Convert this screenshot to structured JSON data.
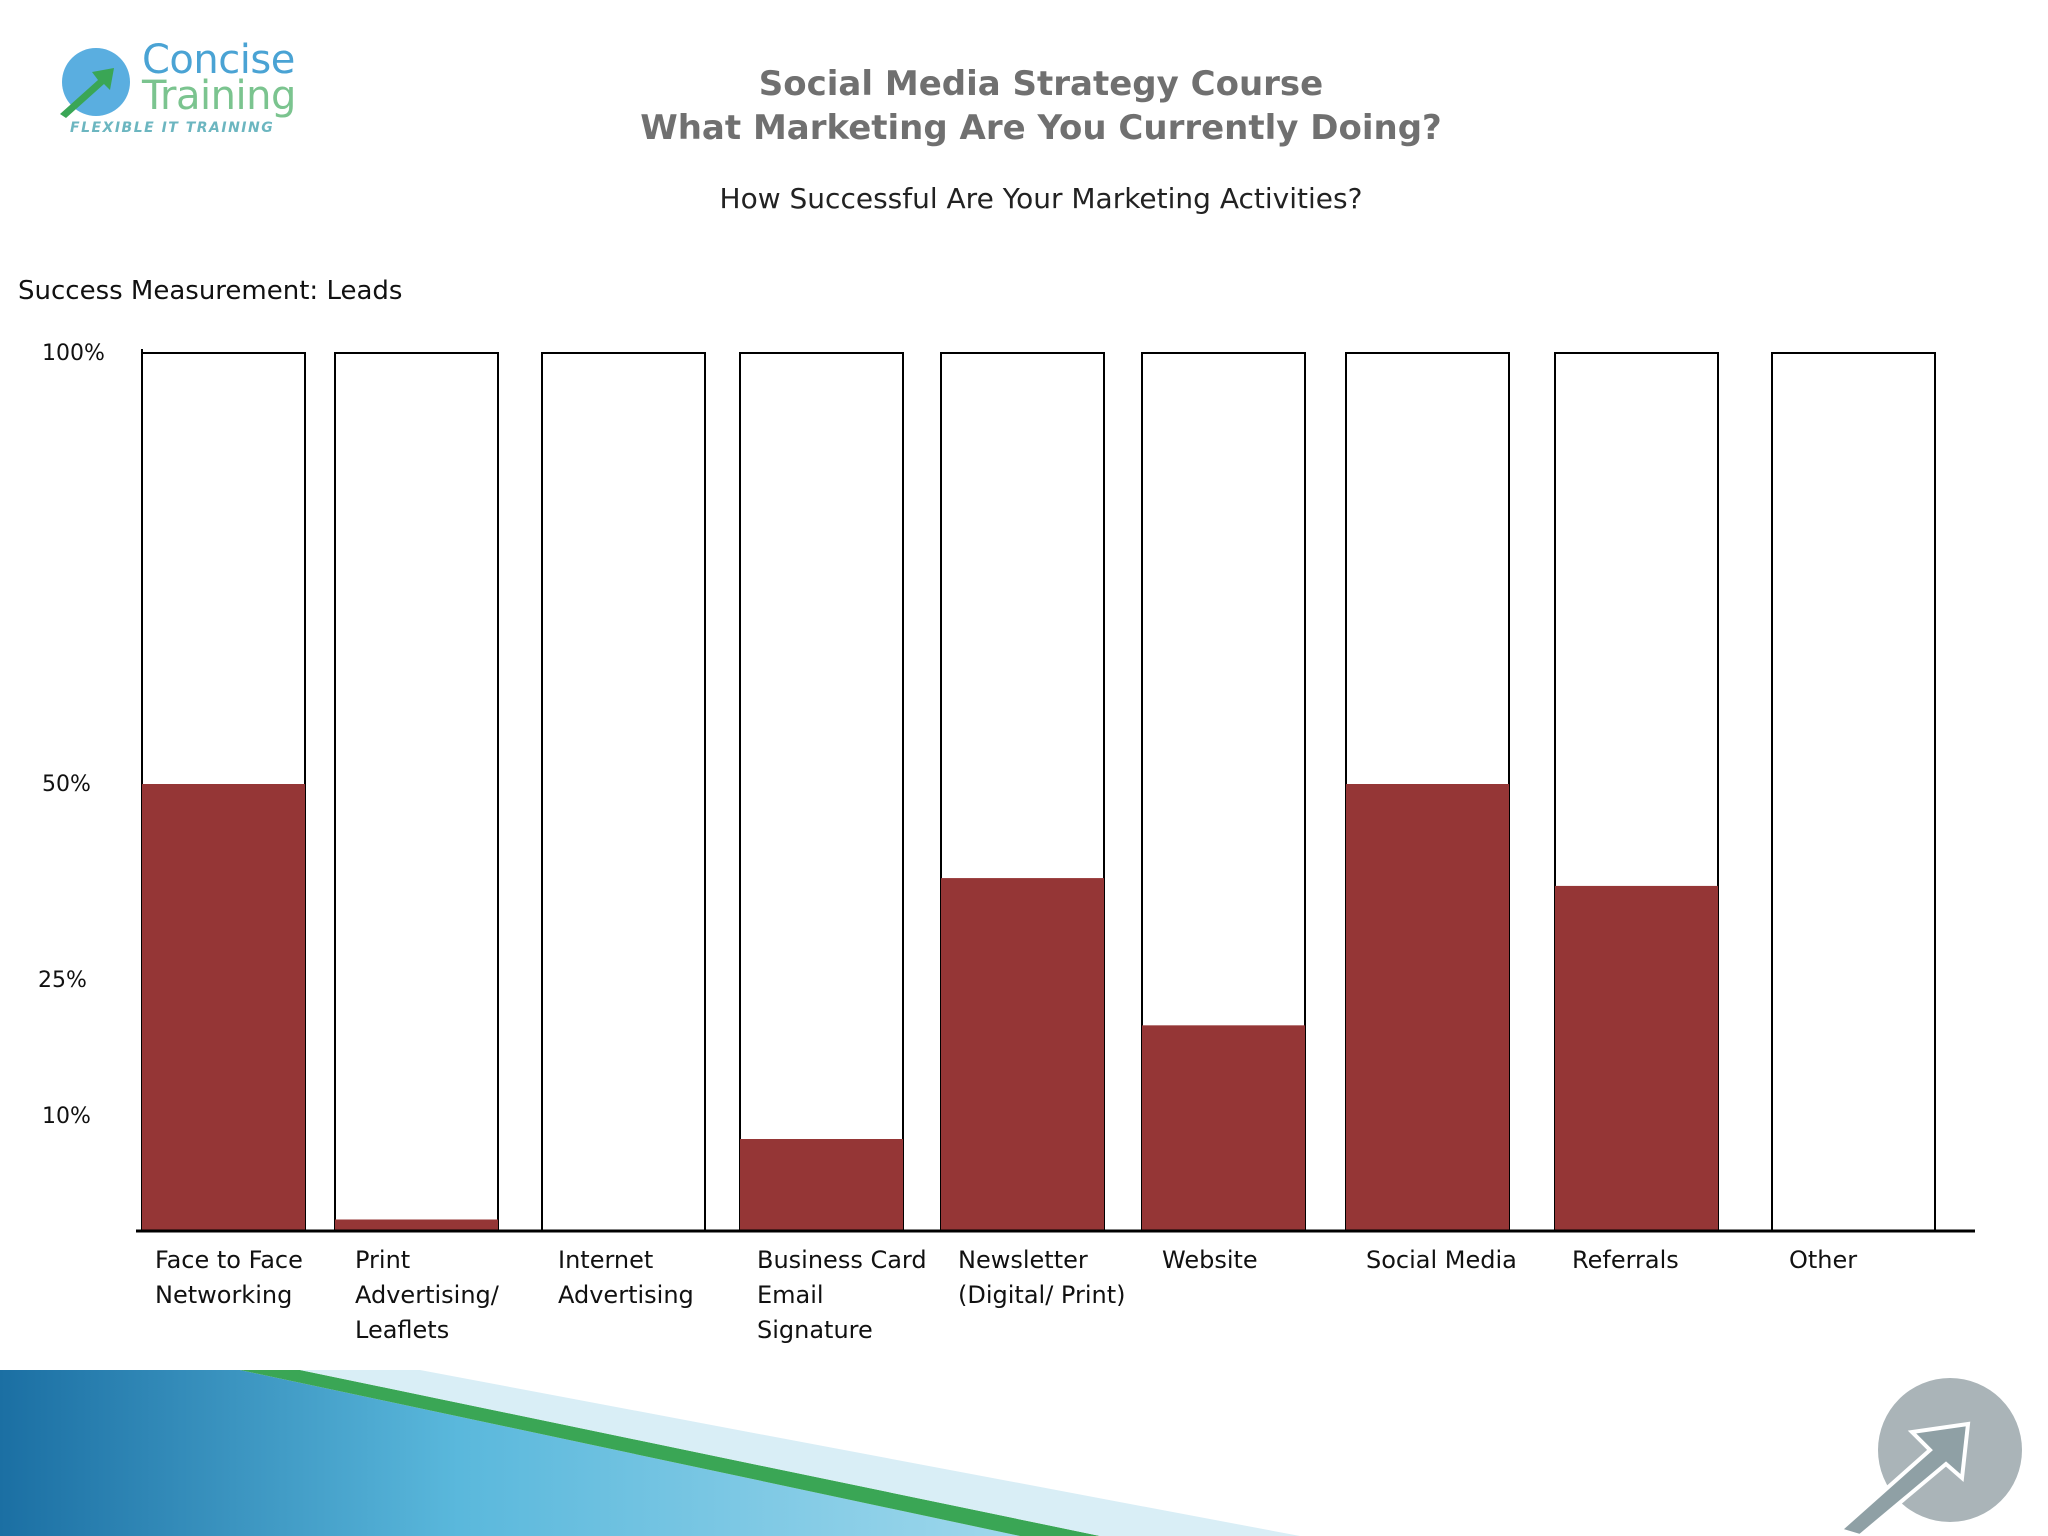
{
  "logo": {
    "line1": "Concise",
    "line2": "Training",
    "tagline": "FLEXIBLE IT TRAINING"
  },
  "header": {
    "title_line1": "Social Media Strategy Course",
    "title_line2": "What Marketing Are You Currently Doing?",
    "question": "How Successful Are Your Marketing Activities?"
  },
  "measurement_label": "Success Measurement: Leads",
  "colors": {
    "bar": "#953636",
    "title": "#707070",
    "logo": "#4aa3d4",
    "accent_green": "#3aa655"
  },
  "chart_data": {
    "type": "bar",
    "title": "How Successful Are Your Marketing Activities?",
    "ylabel": "Success Measurement: Leads",
    "xlabel": "",
    "ylim": [
      0,
      100
    ],
    "y_ticks": [
      "100%",
      "50%",
      "25%",
      "10%"
    ],
    "categories": [
      "Face to Face\nNetworking",
      "Print\nAdvertising/\nLeaflets",
      "Internet\nAdvertising",
      "Business Card\nEmail\nSignature",
      "Newsletter\n(Digital/ Print)",
      "Website",
      "Social Media",
      "Referrals",
      "Other"
    ],
    "values": [
      50,
      1,
      0,
      8,
      38,
      20,
      50,
      37,
      0
    ]
  }
}
